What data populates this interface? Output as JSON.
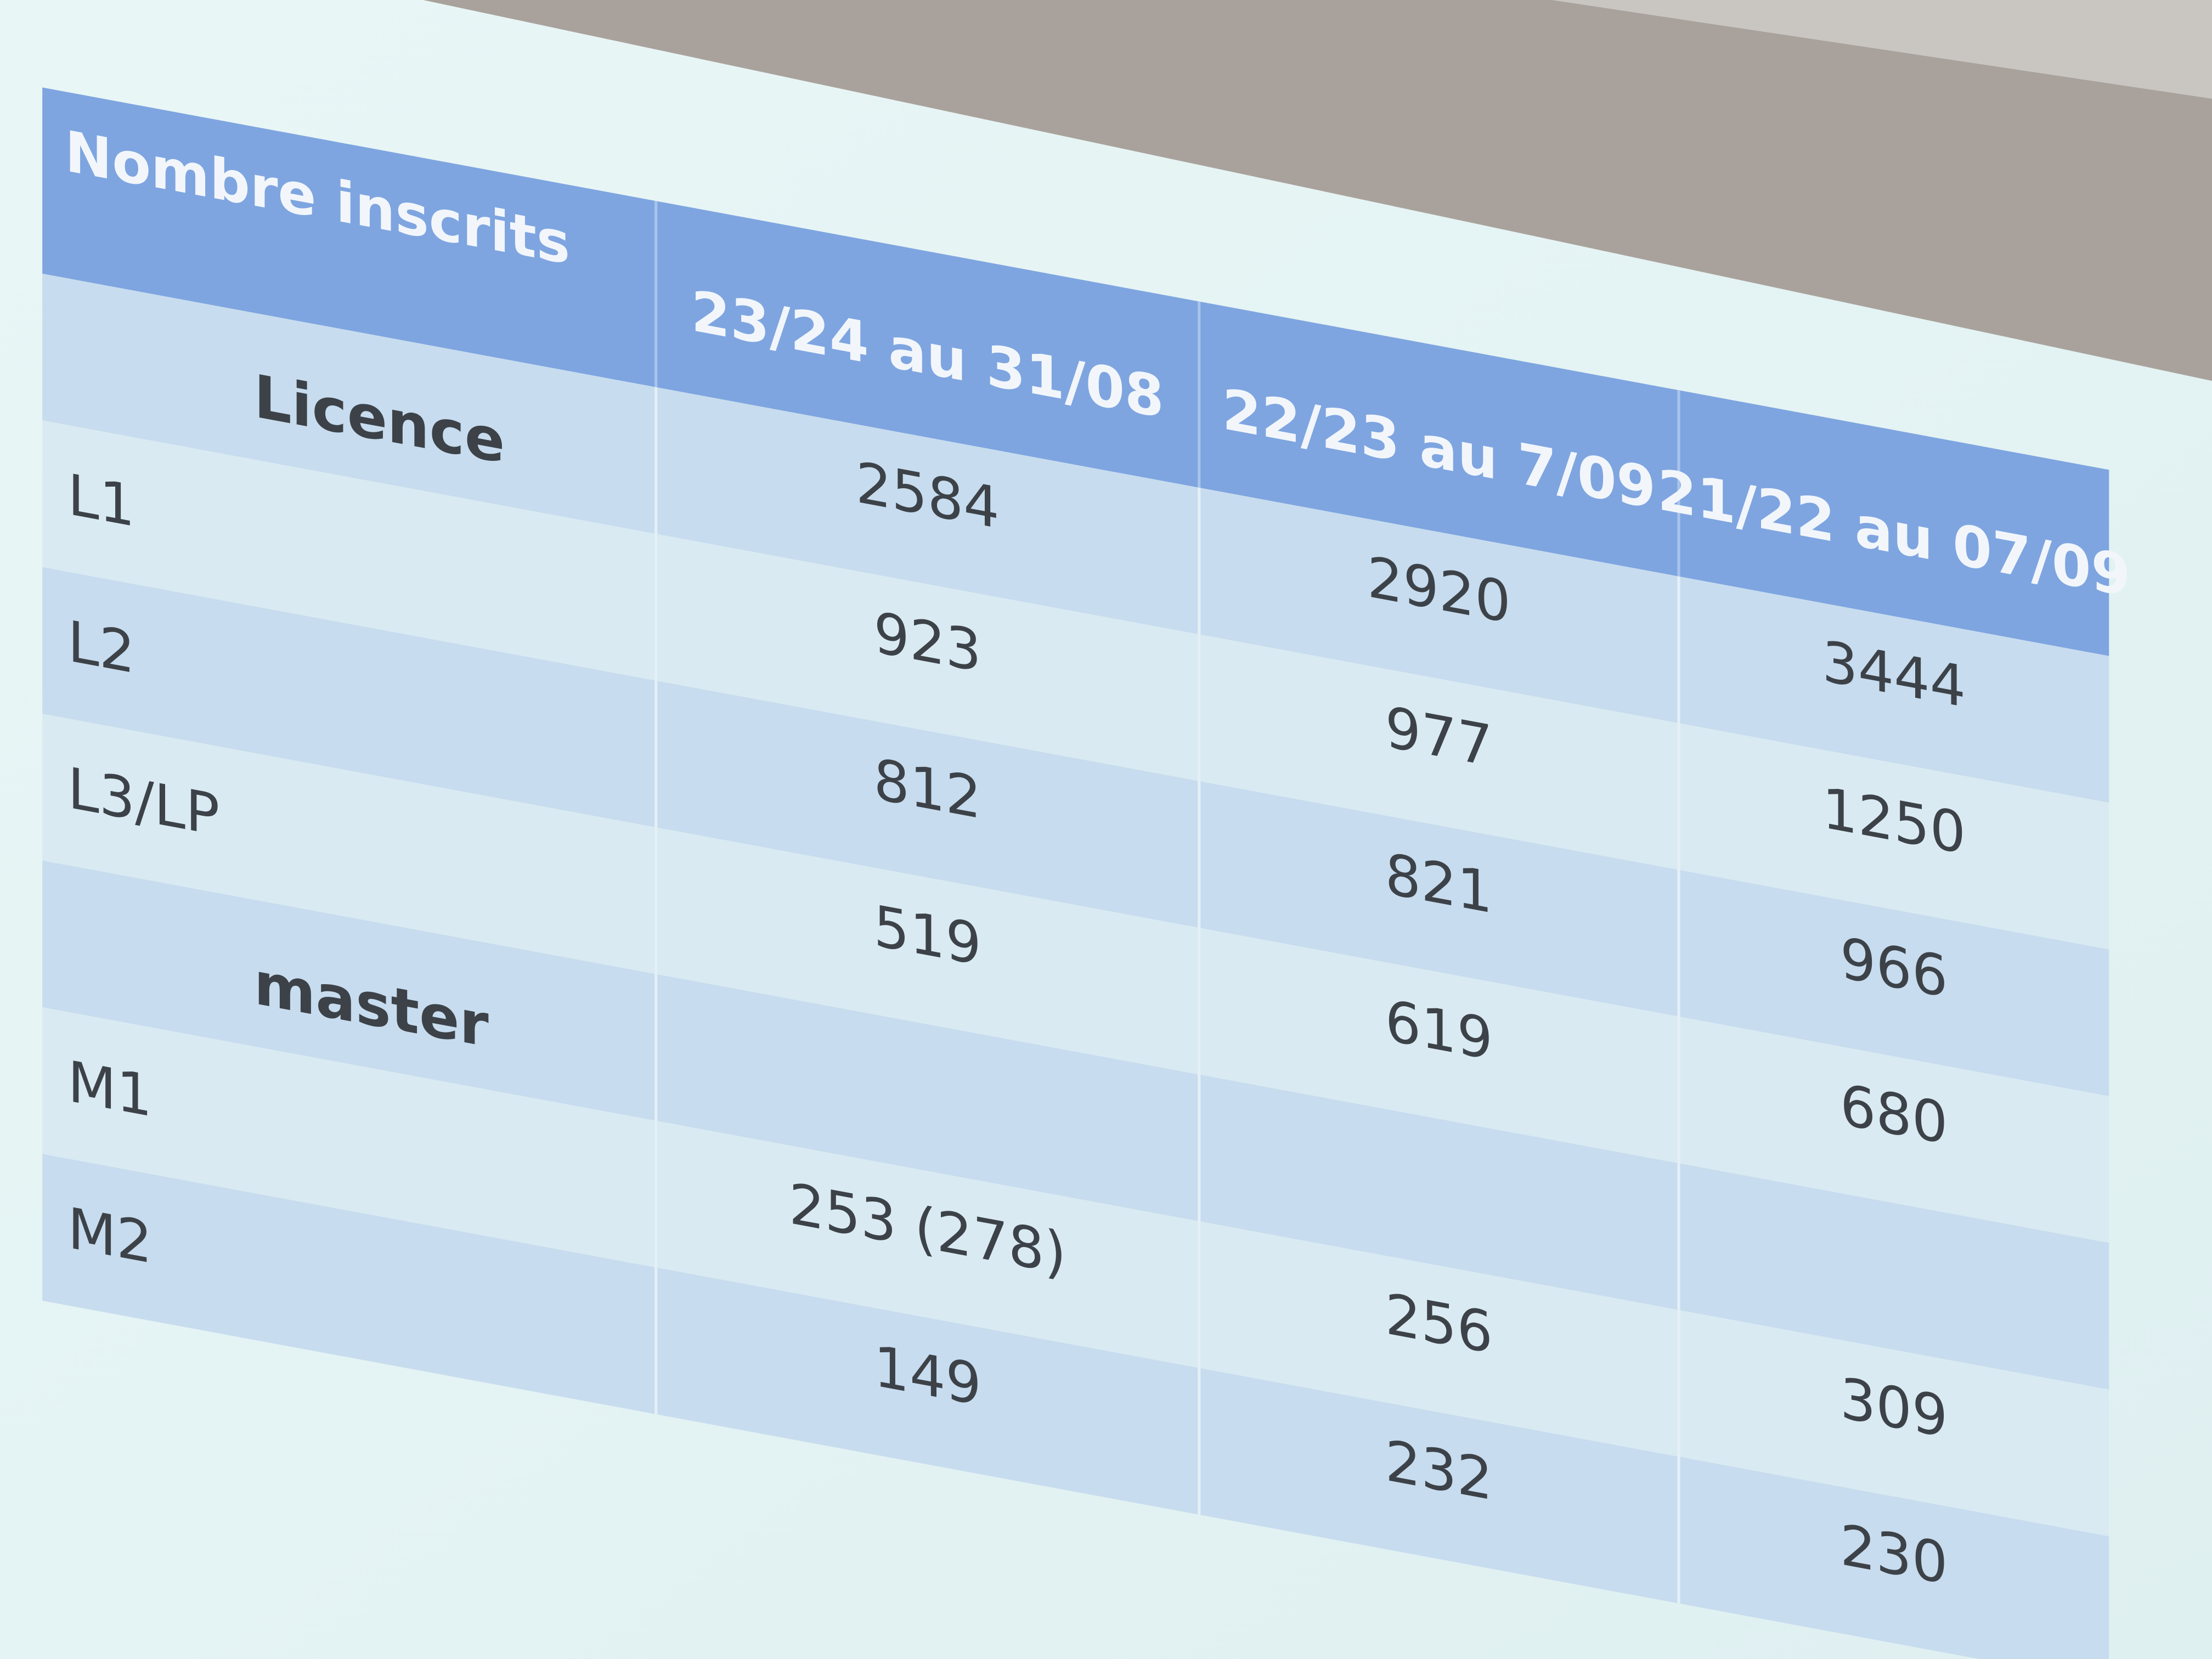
{
  "table": {
    "header": [
      "Nombre inscrits",
      "23/24 au 31/08",
      "22/23 au 7/09",
      "21/22 au 07/09"
    ],
    "rows": [
      [
        "Licence",
        "2584",
        "2920",
        "3444"
      ],
      [
        "L1",
        "923",
        "977",
        "1250"
      ],
      [
        "L2",
        "812",
        "821",
        "966"
      ],
      [
        "L3/LP",
        "519",
        "619",
        "680"
      ],
      [
        "master"
      ],
      [
        "M1",
        "253 (278)",
        "256",
        "309"
      ],
      [
        "M2",
        "149",
        "232",
        "230"
      ]
    ]
  }
}
